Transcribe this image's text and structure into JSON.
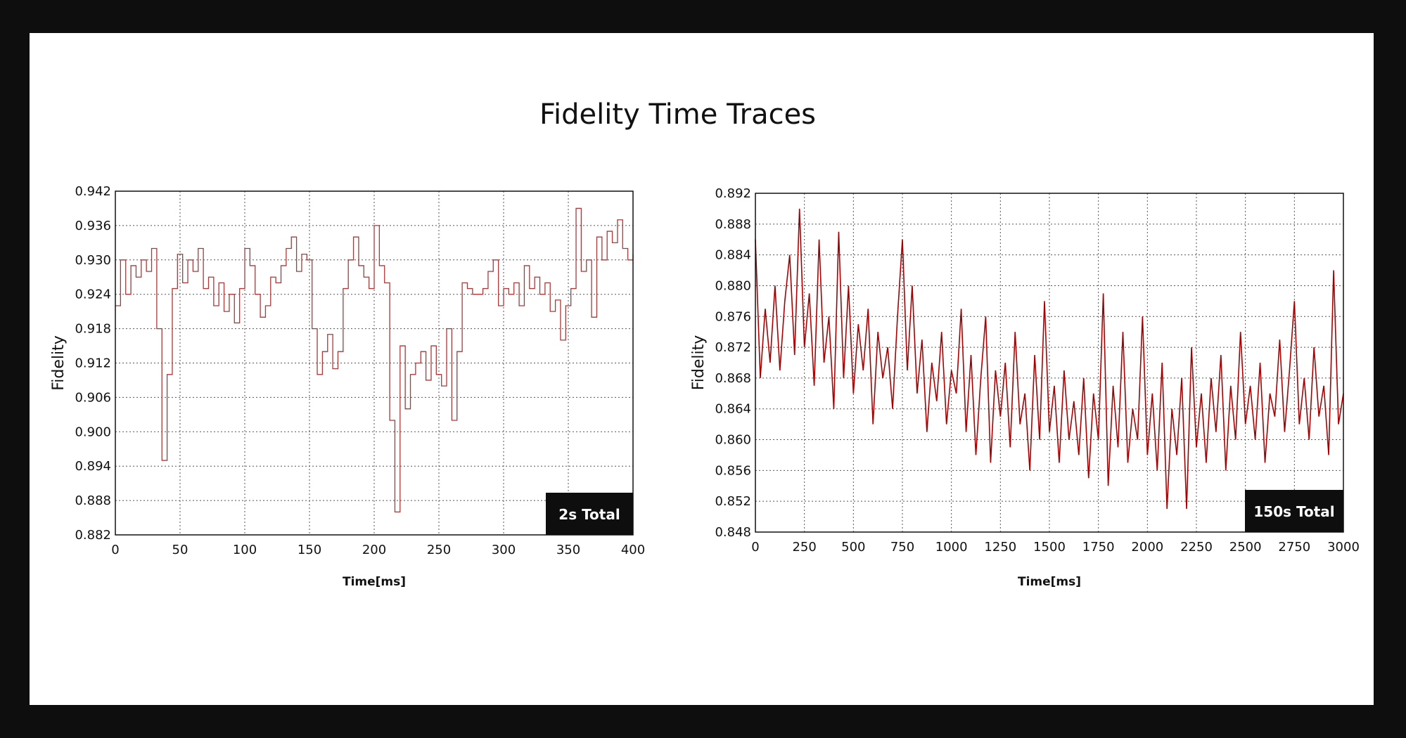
{
  "title": "Fidelity Time Traces",
  "colors": {
    "trace_left": "#a83a3a",
    "trace_right": "#a80000",
    "badge": "#0e0e0e"
  },
  "chart_data": [
    {
      "type": "line",
      "badge": "2s Total",
      "xlabel": "Time[ms]",
      "ylabel": "Fidelity",
      "xlim": [
        0,
        400
      ],
      "ylim": [
        0.882,
        0.942
      ],
      "xticks": [
        "0",
        "50",
        "100",
        "150",
        "200",
        "250",
        "300",
        "350",
        "400"
      ],
      "yticks": [
        "0.942",
        "0.936",
        "0.930",
        "0.924",
        "0.918",
        "0.912",
        "0.906",
        "0.900",
        "0.894",
        "0.888",
        "0.882"
      ],
      "grid": true,
      "x_step": 4,
      "values": [
        0.922,
        0.93,
        0.924,
        0.929,
        0.927,
        0.93,
        0.928,
        0.932,
        0.918,
        0.895,
        0.91,
        0.925,
        0.931,
        0.926,
        0.93,
        0.928,
        0.932,
        0.925,
        0.927,
        0.922,
        0.926,
        0.921,
        0.924,
        0.919,
        0.925,
        0.932,
        0.929,
        0.924,
        0.92,
        0.922,
        0.927,
        0.926,
        0.929,
        0.932,
        0.934,
        0.928,
        0.931,
        0.93,
        0.918,
        0.91,
        0.914,
        0.917,
        0.911,
        0.914,
        0.925,
        0.93,
        0.934,
        0.929,
        0.927,
        0.925,
        0.936,
        0.929,
        0.926,
        0.902,
        0.886,
        0.915,
        0.904,
        0.91,
        0.912,
        0.914,
        0.909,
        0.915,
        0.91,
        0.908,
        0.918,
        0.902,
        0.914,
        0.926,
        0.925,
        0.924,
        0.924,
        0.925,
        0.928,
        0.93,
        0.922,
        0.925,
        0.924,
        0.926,
        0.922,
        0.929,
        0.925,
        0.927,
        0.924,
        0.926,
        0.921,
        0.923,
        0.916,
        0.922,
        0.925,
        0.939,
        0.928,
        0.93,
        0.92,
        0.934,
        0.93,
        0.935,
        0.933,
        0.937,
        0.932,
        0.93,
        0.931
      ]
    },
    {
      "type": "line",
      "badge": "150s Total",
      "xlabel": "Time[ms]",
      "ylabel": "Fidelity",
      "xlim": [
        0,
        3000
      ],
      "ylim": [
        0.848,
        0.892
      ],
      "xticks": [
        "0",
        "250",
        "500",
        "750",
        "1000",
        "1250",
        "1500",
        "1750",
        "2000",
        "2250",
        "2500",
        "2750",
        "3000"
      ],
      "yticks": [
        "0.892",
        "0.888",
        "0.884",
        "0.880",
        "0.876",
        "0.872",
        "0.868",
        "0.864",
        "0.860",
        "0.856",
        "0.852",
        "0.848"
      ],
      "grid": true,
      "x_step": 25,
      "values": [
        0.886,
        0.868,
        0.877,
        0.87,
        0.88,
        0.869,
        0.878,
        0.884,
        0.871,
        0.89,
        0.872,
        0.879,
        0.867,
        0.886,
        0.87,
        0.876,
        0.864,
        0.887,
        0.868,
        0.88,
        0.866,
        0.875,
        0.869,
        0.877,
        0.862,
        0.874,
        0.868,
        0.872,
        0.864,
        0.876,
        0.886,
        0.869,
        0.88,
        0.866,
        0.873,
        0.861,
        0.87,
        0.865,
        0.874,
        0.862,
        0.869,
        0.866,
        0.877,
        0.861,
        0.871,
        0.858,
        0.868,
        0.876,
        0.857,
        0.869,
        0.863,
        0.87,
        0.859,
        0.874,
        0.862,
        0.866,
        0.856,
        0.871,
        0.86,
        0.878,
        0.861,
        0.867,
        0.857,
        0.869,
        0.86,
        0.865,
        0.858,
        0.868,
        0.855,
        0.866,
        0.86,
        0.879,
        0.854,
        0.867,
        0.859,
        0.874,
        0.857,
        0.864,
        0.86,
        0.876,
        0.858,
        0.866,
        0.856,
        0.87,
        0.851,
        0.864,
        0.858,
        0.868,
        0.851,
        0.872,
        0.859,
        0.866,
        0.857,
        0.868,
        0.861,
        0.871,
        0.856,
        0.867,
        0.86,
        0.874,
        0.862,
        0.867,
        0.86,
        0.87,
        0.857,
        0.866,
        0.863,
        0.873,
        0.861,
        0.869,
        0.878,
        0.862,
        0.868,
        0.86,
        0.872,
        0.863,
        0.867,
        0.858,
        0.882,
        0.862,
        0.866
      ]
    }
  ]
}
